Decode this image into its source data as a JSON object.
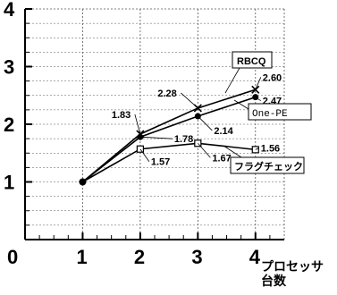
{
  "chart_data": {
    "type": "line",
    "x": [
      1,
      2,
      3,
      4
    ],
    "xlim": [
      0,
      4.5
    ],
    "ylim": [
      0,
      4
    ],
    "x_ticks": [
      "0",
      "1",
      "2",
      "3",
      "4"
    ],
    "y_ticks": [
      "1",
      "2",
      "3",
      "4"
    ],
    "xlabel_line1": "プロセッサ",
    "xlabel_line2": "台数",
    "ylabel": "",
    "grid": true,
    "series": [
      {
        "name": "RBCQ",
        "values": [
          1,
          1.83,
          2.28,
          2.6
        ],
        "labels": [
          "",
          "1.83",
          "2.28",
          "2.60"
        ],
        "marker": "x"
      },
      {
        "name": "One-PE",
        "values": [
          1,
          1.78,
          2.14,
          2.47
        ],
        "labels": [
          "",
          "1.78",
          "2.14",
          "2.47"
        ],
        "marker": "dot"
      },
      {
        "name": "フラグチェック",
        "values": [
          1,
          1.57,
          1.67,
          1.56
        ],
        "labels": [
          "",
          "1.57",
          "1.67",
          "1.56"
        ],
        "marker": "square"
      }
    ]
  }
}
